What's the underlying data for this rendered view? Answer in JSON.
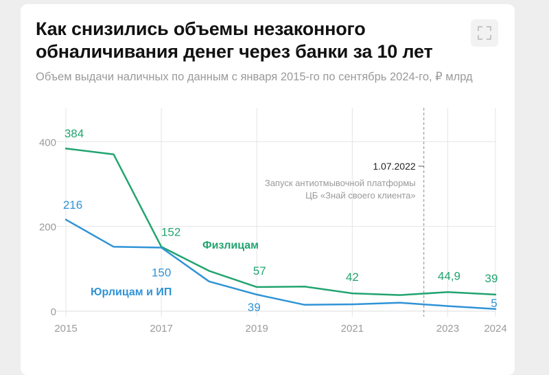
{
  "title": "Как снизились объемы незаконного обналичивания денег через банки за 10 лет",
  "subtitle": "Объем выдачи наличных по данным с января 2015-го по сентябрь 2024-го, ₽ млрд",
  "fullscreen_icon": "fullscreen-icon",
  "chart_data": {
    "type": "line",
    "title": "Как снизились объемы незаконного обналичивания денег через банки за 10 лет",
    "subtitle": "Объем выдачи наличных по данным с января 2015-го по сентябрь 2024-го, ₽ млрд",
    "x_ticks": [
      "2015",
      "2017",
      "2019",
      "2021",
      "2023",
      "2024"
    ],
    "x_tick_values": [
      2015,
      2017,
      2019,
      2021,
      2023,
      2024
    ],
    "y_ticks": [
      "0",
      "200",
      "400"
    ],
    "y_tick_values": [
      0,
      200,
      400
    ],
    "xlim": [
      2015,
      2024
    ],
    "ylim": [
      0,
      480
    ],
    "grid": true,
    "series": [
      {
        "name": "Физлицам",
        "color": "#21a46f",
        "x": [
          2015,
          2016,
          2017,
          2018,
          2019,
          2020,
          2021,
          2022,
          2023,
          2024
        ],
        "values": [
          384,
          370,
          152,
          95,
          57,
          58,
          42,
          38,
          44.9,
          39
        ]
      },
      {
        "name": "Юрлицам и ИП",
        "color": "#2f93d6",
        "x": [
          2015,
          2016,
          2017,
          2018,
          2019,
          2020,
          2021,
          2022,
          2023,
          2024
        ],
        "values": [
          216,
          152,
          150,
          70,
          39,
          15,
          16,
          20,
          12,
          5
        ]
      }
    ],
    "data_labels": [
      {
        "series": 0,
        "x": 2015,
        "y": 384,
        "text": "384"
      },
      {
        "series": 0,
        "x": 2017,
        "y": 152,
        "text": "152"
      },
      {
        "series": 0,
        "x": 2019,
        "y": 57,
        "text": "57"
      },
      {
        "series": 0,
        "x": 2021,
        "y": 42,
        "text": "42"
      },
      {
        "series": 0,
        "x": 2023,
        "y": 44.9,
        "text": "44,9"
      },
      {
        "series": 0,
        "x": 2024,
        "y": 39,
        "text": "39"
      },
      {
        "series": 1,
        "x": 2015,
        "y": 216,
        "text": "216"
      },
      {
        "series": 1,
        "x": 2017,
        "y": 150,
        "text": "150"
      },
      {
        "series": 1,
        "x": 2019,
        "y": 39,
        "text": "39"
      },
      {
        "series": 1,
        "x": 2024,
        "y": 5,
        "text": "5"
      }
    ],
    "series_labels": [
      "Физлицам",
      "Юрлицам и ИП"
    ],
    "annotation": {
      "x": 2022.5,
      "date": "1.07.2022",
      "line1": "Запуск антиотмывочной платформы",
      "line2": "ЦБ «Знай своего клиента»"
    }
  }
}
